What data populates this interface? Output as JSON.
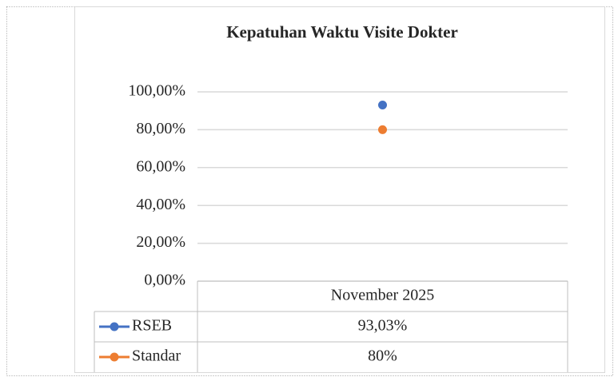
{
  "chart_data": {
    "type": "line",
    "title": "Kepatuhan Waktu Visite Dokter",
    "categories": [
      "November 2025"
    ],
    "series": [
      {
        "name": "RSEB",
        "color": "#4472c4",
        "values": [
          93.03
        ],
        "value_labels": [
          "93,03%"
        ]
      },
      {
        "name": "Standar",
        "color": "#ed7d31",
        "values": [
          80
        ],
        "value_labels": [
          "80%"
        ]
      }
    ],
    "ylim": [
      0,
      100
    ],
    "yticks": [
      {
        "value": 0,
        "label": "0,00%"
      },
      {
        "value": 20,
        "label": "20,00%"
      },
      {
        "value": 40,
        "label": "40,00%"
      },
      {
        "value": 60,
        "label": "60,00%"
      },
      {
        "value": 80,
        "label": "80,00%"
      },
      {
        "value": 100,
        "label": "100,00%"
      }
    ],
    "grid": true
  }
}
